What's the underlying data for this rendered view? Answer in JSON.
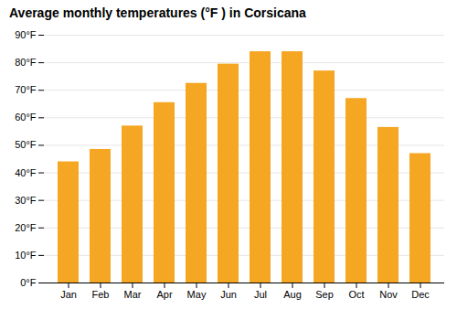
{
  "chart_data": {
    "type": "bar",
    "title": "Average monthly temperatures (°F ) in Corsicana",
    "categories": [
      "Jan",
      "Feb",
      "Mar",
      "Apr",
      "May",
      "Jun",
      "Jul",
      "Aug",
      "Sep",
      "Oct",
      "Nov",
      "Dec"
    ],
    "values": [
      44,
      48.5,
      57,
      65.5,
      72.5,
      79.5,
      84,
      84,
      77,
      67,
      56.5,
      47
    ],
    "color": "#F5A623",
    "ylim": [
      0,
      90
    ],
    "yticks": [
      {
        "value": 0,
        "label": "0°F"
      },
      {
        "value": 10,
        "label": "10°F"
      },
      {
        "value": 20,
        "label": "20°F"
      },
      {
        "value": 30,
        "label": "30°F"
      },
      {
        "value": 40,
        "label": "40°F"
      },
      {
        "value": 50,
        "label": "50°F"
      },
      {
        "value": 60,
        "label": "60°F"
      },
      {
        "value": 70,
        "label": "70°F"
      },
      {
        "value": 80,
        "label": "80°F"
      },
      {
        "value": 90,
        "label": "90°F"
      }
    ],
    "grid": true
  }
}
